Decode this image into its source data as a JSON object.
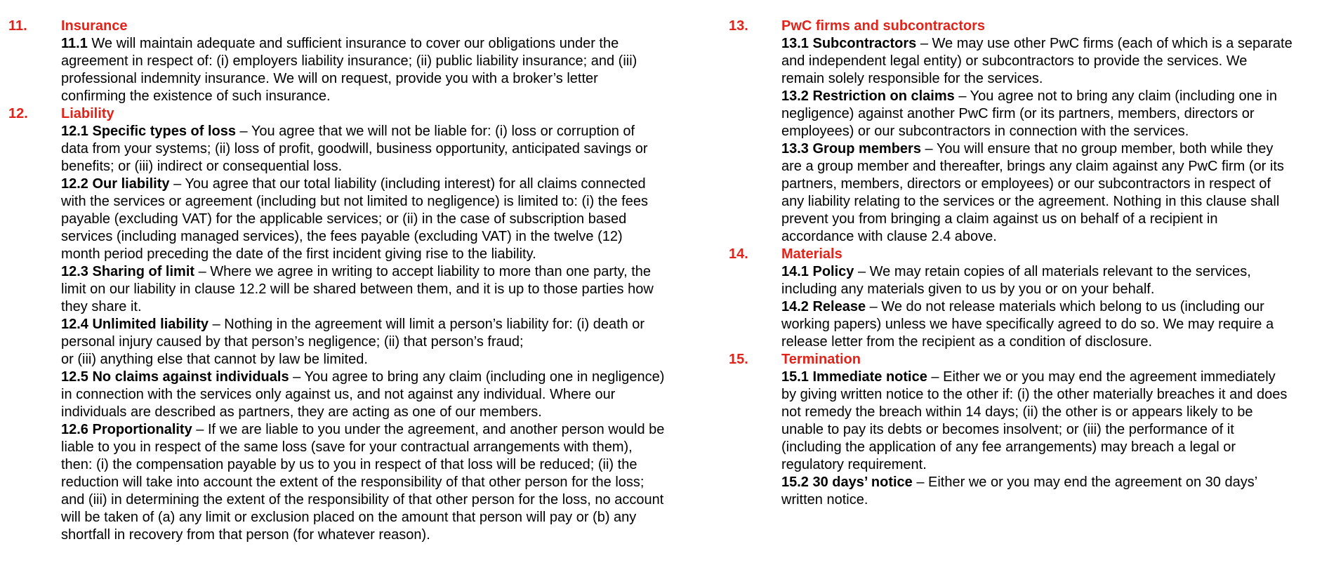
{
  "colors": {
    "accent": "#e2231a",
    "text": "#000000"
  },
  "left_column": [
    {
      "number": "11.",
      "title": "Insurance",
      "clauses": [
        {
          "label": "11.1",
          "lines": [
            " We will maintain adequate and sufficient insurance to cover our obligations under the",
            "agreement in respect of: (i) employers liability insurance; (ii) public liability insurance; and (iii)",
            "professional indemnity insurance. We will on request, provide you with a broker’s letter",
            "confirming the existence of such insurance."
          ]
        }
      ]
    },
    {
      "number": "12.",
      "title": "Liability",
      "clauses": [
        {
          "label": "12.1 Specific types of loss",
          "lines": [
            " – You agree that we will not be liable for: (i) loss or corruption of",
            "data from your systems; (ii) loss of profit, goodwill, business opportunity, anticipated savings or",
            "benefits; or (iii) indirect or consequential loss."
          ]
        },
        {
          "label": "12.2 Our liability",
          "lines": [
            " – You agree that our total liability (including interest) for all claims connected",
            "with the services or agreement (including but not limited to negligence) is limited to: (i) the fees",
            "payable (excluding VAT) for the applicable services; or (ii) in the case of subscription based",
            "services (including managed services), the fees payable (excluding VAT) in the twelve (12)",
            "month period preceding the date of the first incident giving rise to the liability."
          ]
        },
        {
          "label": "12.3 Sharing of limit",
          "lines": [
            " – Where we agree in writing to accept liability to more than one party, the",
            "limit on our liability in clause 12.2 will be shared between them, and it is up to those parties how",
            "they share it."
          ]
        },
        {
          "label": "12.4 Unlimited liability",
          "lines": [
            " – Nothing in the agreement will limit a person’s liability for: (i) death or",
            "personal injury caused by that person’s negligence; (ii) that person’s fraud;",
            "or (iii) anything else that cannot by law be limited."
          ]
        },
        {
          "label": "12.5 No claims against individuals",
          "lines": [
            " – You agree to bring any claim (including one in negligence)",
            "in connection with the services only against us, and not against any individual. Where our",
            "individuals are described as partners, they are acting as one of our members."
          ]
        },
        {
          "label": "12.6 Proportionality",
          "lines": [
            " – If we are liable to you under the agreement, and another person would be",
            "liable to you in respect of the same loss (save for your contractual arrangements with them),",
            "then: (i) the compensation payable by us to you in respect of that loss will be reduced; (ii) the",
            "reduction will take into account the extent of the responsibility of that other person for the loss;",
            "and (iii) in determining the extent of the responsibility of that other person for the loss, no account",
            "will be taken of (a) any limit or exclusion placed on the amount that person will pay or (b) any",
            "shortfall in recovery from that person (for whatever reason)."
          ]
        }
      ]
    }
  ],
  "right_column": [
    {
      "number": "13.",
      "title": "PwC firms and subcontractors",
      "clauses": [
        {
          "label": "13.1 Subcontractors",
          "lines": [
            " – We may use other PwC firms (each of which is a separate",
            "and independent legal entity) or subcontractors to provide the services. We",
            "remain solely responsible for the services."
          ]
        },
        {
          "label": "13.2 Restriction on claims",
          "lines": [
            " – You agree not to bring any claim (including one in",
            "negligence) against another PwC firm (or its partners, members, directors or",
            "employees) or our subcontractors in connection with the services."
          ]
        },
        {
          "label": "13.3 Group members",
          "lines": [
            " – You will ensure that no group member, both while they",
            "are a group member and thereafter, brings any claim against any PwC firm (or its",
            "partners, members, directors or employees) or our subcontractors in respect of",
            "any liability relating to the services or the agreement. Nothing in this clause shall",
            "prevent you from bringing a claim against us on behalf of a recipient in",
            "accordance with clause 2.4 above."
          ]
        }
      ]
    },
    {
      "number": "14.",
      "title": "Materials",
      "clauses": [
        {
          "label": "14.1 Policy",
          "lines": [
            " – We may retain copies of all materials relevant to the services,",
            "including any materials given to us by you or on your behalf."
          ]
        },
        {
          "label": "14.2 Release",
          "lines": [
            " – We do not release materials which belong to us (including our",
            "working papers) unless we have specifically agreed to do so. We may require a",
            "release letter from the recipient as a condition of disclosure."
          ]
        }
      ]
    },
    {
      "number": "15.",
      "title": "Termination",
      "clauses": [
        {
          "label": "15.1 Immediate notice",
          "lines": [
            " – Either we or you may end the agreement immediately",
            "by giving written notice to the other if: (i) the other materially breaches it and does",
            "not remedy the breach within 14 days; (ii) the other is or appears likely to be",
            "unable to pay its debts or becomes insolvent; or (iii) the performance of it",
            "(including the application of any fee arrangements) may breach a legal or",
            "regulatory requirement."
          ]
        },
        {
          "label": "15.2 30 days’ notice",
          "lines": [
            " – Either we or you may end the agreement on 30 days’",
            "written notice."
          ]
        }
      ]
    }
  ]
}
